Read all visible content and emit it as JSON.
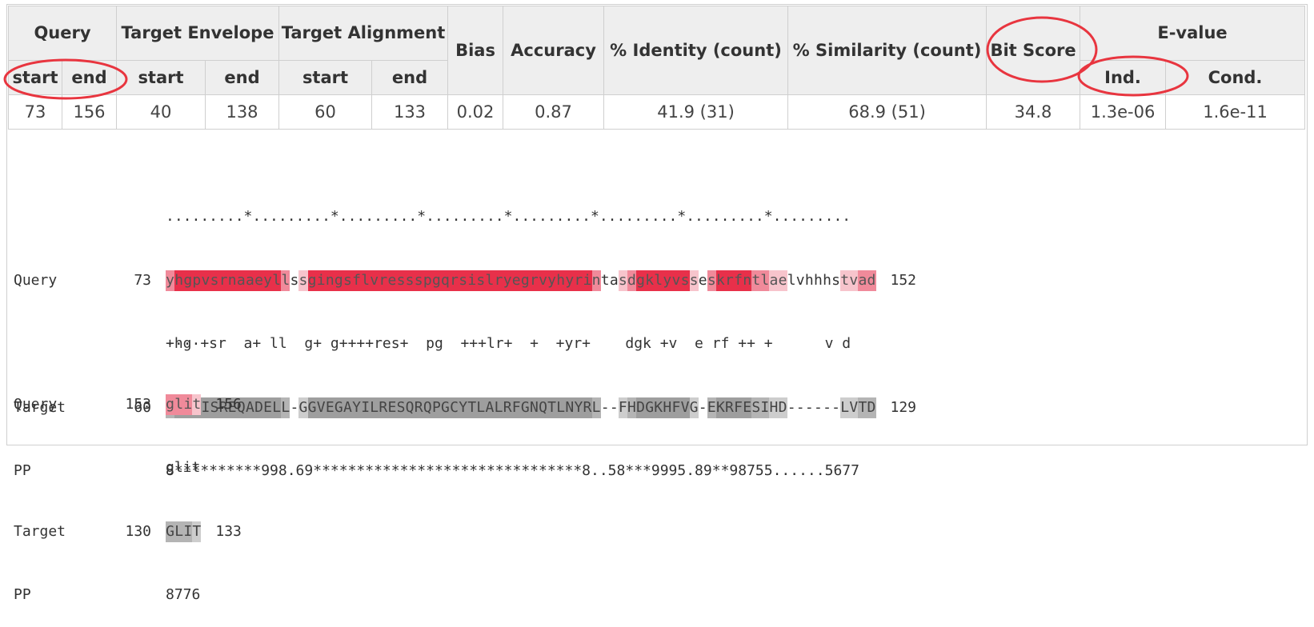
{
  "table": {
    "headers": {
      "query": "Query",
      "target_envelope": "Target Envelope",
      "target_alignment": "Target Alignment",
      "bias": "Bias",
      "accuracy": "Accuracy",
      "identity": "% Identity (count)",
      "similarity": "% Similarity (count)",
      "bit_score": "Bit Score",
      "evalue": "E-value",
      "start": "start",
      "end": "end",
      "ind": "Ind.",
      "cond": "Cond."
    },
    "row": {
      "query_start": "73",
      "query_end": "156",
      "env_start": "40",
      "env_end": "138",
      "aln_start": "60",
      "aln_end": "133",
      "bias": "0.02",
      "accuracy": "0.87",
      "identity": "41.9 (31)",
      "similarity": "68.9 (51)",
      "bit_score": "34.8",
      "evalue_ind": "1.3e-06",
      "evalue_cond": "1.6e-11"
    }
  },
  "alignment": {
    "block1": {
      "ruler": ".........*.........*.........*.........*.........*.........*.........*.........",
      "query_label": "Query",
      "query_start": "73",
      "query_seq": "yhgpvsrnaaeyllssgingsflvressspgqrsislryegrvyhyrintasdgklyvsseskrfntlaelvhhhstvad",
      "query_end": "152",
      "match": "+hg +sr  a+ ll  g+ g++++res+  pg  +++lr+  +  +yr+    dgk +v  e rf ++ +      v d",
      "target_label": "Target",
      "target_start": "60",
      "target_seq": "FHGIISREQADELL-GGVEGAYILRESQRQPGCYTLALRFGNQTLNYRL--FHDGKHFVG-EKRFESIHD------LVTD",
      "target_end": "129",
      "pp_label": "PP",
      "pp": "8**********998.69*******************************8..58***9995.89**98755......5677"
    },
    "block2": {
      "ruler": "....",
      "query_label": "Query",
      "query_start": "153",
      "query_seq": "glit",
      "query_end": "156",
      "match": "glit",
      "target_label": "Target",
      "target_start": "130",
      "target_seq": "GLIT",
      "target_end": "133",
      "pp_label": "PP",
      "pp": "8776"
    }
  },
  "colors": {
    "annotation_circle": "#e8353f",
    "header_bg": "#eeeeee",
    "high_identity": "#e8304a",
    "mid_identity": "#f08a9a",
    "low_identity": "#f7c4cc"
  }
}
